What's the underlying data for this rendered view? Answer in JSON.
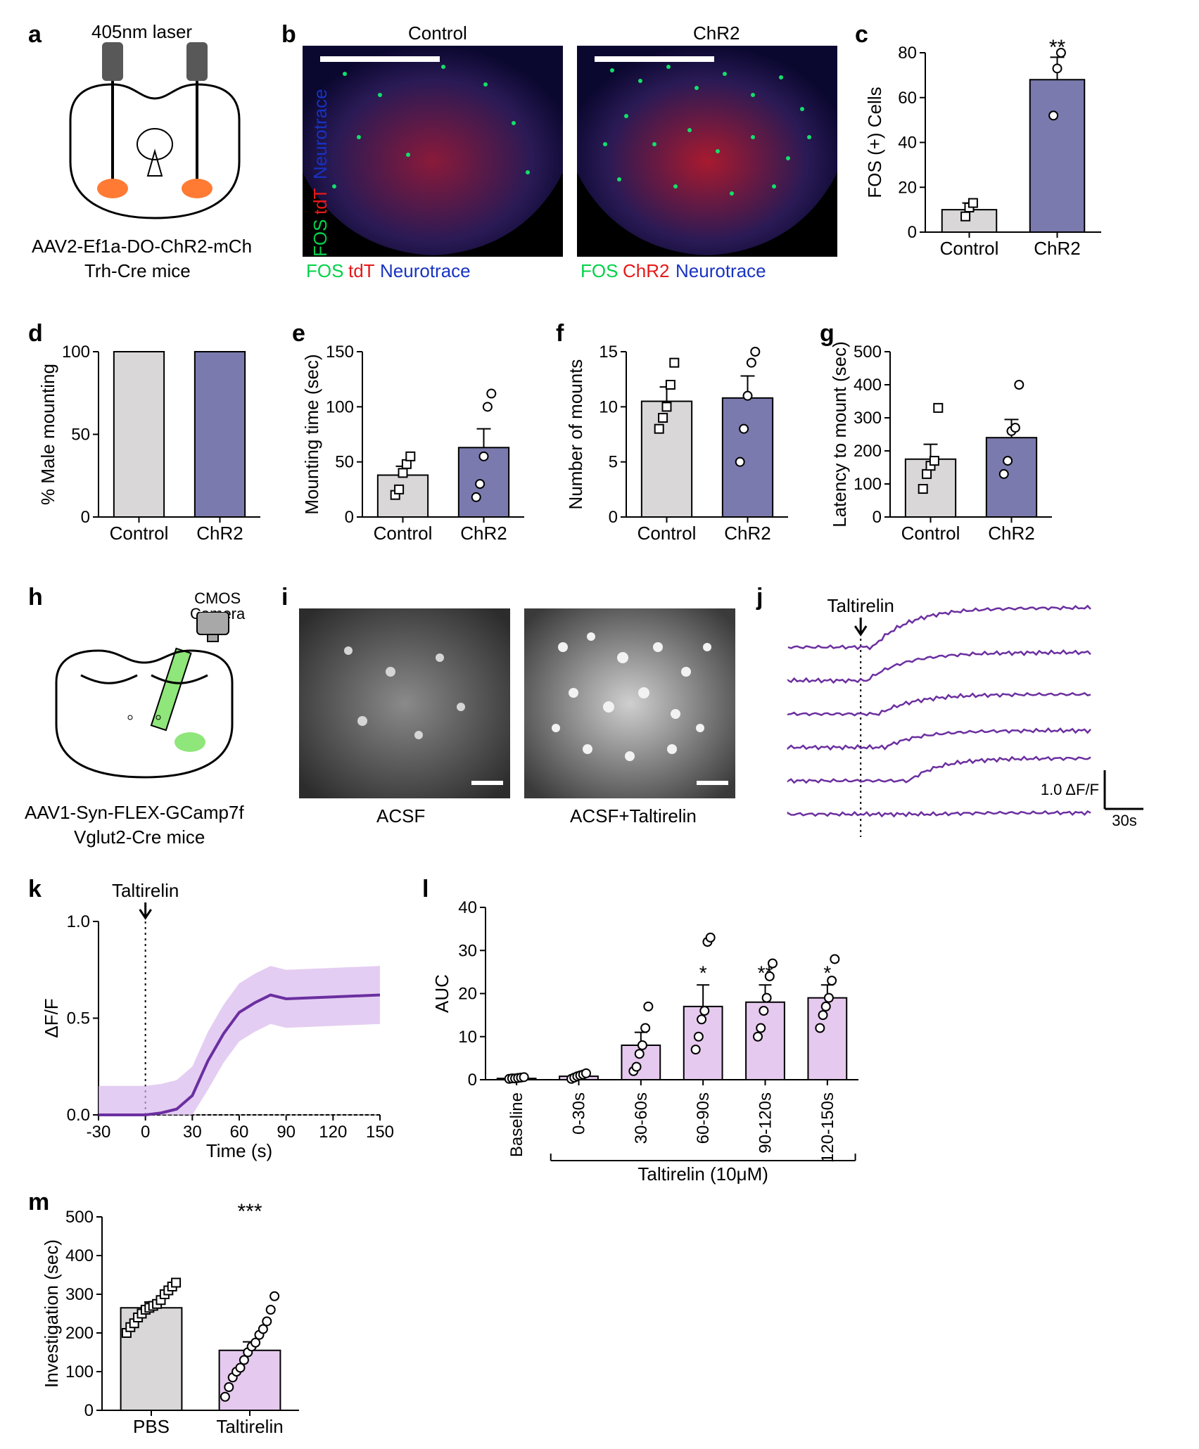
{
  "colors": {
    "control_fill": "#d9d7d7",
    "chr2_fill": "#7b7aae",
    "taltirelin_fill": "#e6c9ef",
    "line_purple": "#6b2fa0",
    "shade_purple": "#d9b8ec",
    "green": "#05d14a",
    "red": "#e61919",
    "blue": "#1733c2",
    "grey": "#808080"
  },
  "typography": {
    "panel_label_fontsize": 34,
    "axis_fontsize": 26,
    "tick_fontsize": 24
  },
  "panels": {
    "a": {
      "label": "a",
      "top_label": "405nm laser",
      "virus": "AAV2-Ef1a-DO-ChR2-mCh",
      "mouse": "Trh-Cre mice"
    },
    "b": {
      "label": "b",
      "left_title": "Control",
      "right_title": "ChR2",
      "left_legend": [
        "FOS",
        "tdT",
        "Neurotrace"
      ],
      "right_legend": [
        "FOS",
        "ChR2",
        "Neurotrace"
      ]
    },
    "c": {
      "label": "c",
      "ylabel": "FOS (+) Cells",
      "ylim": [
        0,
        80
      ],
      "ytick_step": 20,
      "categories": [
        "Control",
        "ChR2"
      ],
      "values": [
        10,
        68
      ],
      "errors": [
        3,
        10
      ],
      "bar_colors_key": [
        "control_fill",
        "chr2_fill"
      ],
      "points": {
        "Control": [
          7,
          11,
          13
        ],
        "ChR2": [
          52,
          73,
          80
        ]
      },
      "sig": "**",
      "point_shapes": [
        "square",
        "circle"
      ]
    },
    "d": {
      "label": "d",
      "ylabel": "% Male mounting",
      "ylim": [
        0,
        100
      ],
      "ytick_step": 50,
      "categories": [
        "Control",
        "ChR2"
      ],
      "values": [
        100,
        100
      ],
      "bar_colors_key": [
        "control_fill",
        "chr2_fill"
      ]
    },
    "e": {
      "label": "e",
      "ylabel": "Mounting time (sec)",
      "ylim": [
        0,
        150
      ],
      "ytick_step": 50,
      "categories": [
        "Control",
        "ChR2"
      ],
      "values": [
        38,
        63
      ],
      "errors": [
        8,
        17
      ],
      "bar_colors_key": [
        "control_fill",
        "chr2_fill"
      ],
      "points": {
        "Control": [
          20,
          25,
          40,
          48,
          55
        ],
        "ChR2": [
          18,
          30,
          55,
          100,
          112
        ]
      },
      "point_shapes": [
        "square",
        "circle"
      ]
    },
    "f": {
      "label": "f",
      "ylabel": "Number of mounts",
      "ylim": [
        0,
        15
      ],
      "ytick_step": 5,
      "categories": [
        "Control",
        "ChR2"
      ],
      "values": [
        10.5,
        10.8
      ],
      "errors": [
        1.3,
        2.0
      ],
      "bar_colors_key": [
        "control_fill",
        "chr2_fill"
      ],
      "points": {
        "Control": [
          8,
          9,
          10,
          12,
          14
        ],
        "ChR2": [
          5,
          8,
          11,
          14,
          15
        ]
      },
      "point_shapes": [
        "square",
        "circle"
      ]
    },
    "g": {
      "label": "g",
      "ylabel": "Latency to mount (sec)",
      "ylim": [
        0,
        500
      ],
      "ytick_step": 100,
      "categories": [
        "Control",
        "ChR2"
      ],
      "values": [
        175,
        240
      ],
      "errors": [
        45,
        55
      ],
      "bar_colors_key": [
        "control_fill",
        "chr2_fill"
      ],
      "points": {
        "Control": [
          85,
          130,
          155,
          170,
          330
        ],
        "ChR2": [
          130,
          170,
          260,
          270,
          400
        ]
      },
      "point_shapes": [
        "square",
        "circle"
      ]
    },
    "h": {
      "label": "h",
      "top_label": "CMOS\nCamera",
      "virus": "AAV1-Syn-FLEX-GCamp7f",
      "mouse": "Vglut2-Cre mice"
    },
    "i": {
      "label": "i",
      "left_cap": "ACSF",
      "right_cap": "ACSF+Taltirelin"
    },
    "j": {
      "label": "j",
      "arrow_label": "Taltirelin",
      "scale_y_label": "1.0 ΔF/F",
      "scale_x_label": "30s",
      "n_traces": 6,
      "trace_color_key": "line_purple"
    },
    "k": {
      "label": "k",
      "arrow_label": "Taltirelin",
      "ylabel": "ΔF/F",
      "xlabel": "Time (s)",
      "xlim": [
        -30,
        150
      ],
      "xtick_step": 30,
      "ylim": [
        0,
        1.0
      ],
      "ytick_step": 0.5,
      "mean_series": {
        "x": [
          -30,
          0,
          10,
          20,
          30,
          40,
          50,
          60,
          70,
          80,
          90,
          120,
          150
        ],
        "y": [
          0,
          0,
          0.01,
          0.03,
          0.1,
          0.28,
          0.42,
          0.53,
          0.58,
          0.62,
          0.6,
          0.61,
          0.62
        ]
      },
      "sem": 0.15
    },
    "l": {
      "label": "l",
      "ylabel": "AUC",
      "ylim": [
        0,
        40
      ],
      "ytick_step": 10,
      "categories": [
        "Baseline",
        "0-30s",
        "30-60s",
        "60-90s",
        "90-120s",
        "120-150s"
      ],
      "x_group_label": "Taltirelin (10μM)",
      "values": [
        0.3,
        0.8,
        8,
        17,
        18,
        19
      ],
      "errors": [
        0.2,
        0.5,
        3,
        5,
        4,
        3
      ],
      "sig": [
        "",
        "",
        "",
        "*",
        "**",
        "*"
      ],
      "points": {
        "Baseline": [
          0.2,
          0.3,
          0.3,
          0.4,
          0.5,
          0.6
        ],
        "0-30s": [
          0.2,
          0.5,
          0.8,
          1.0,
          1.2,
          1.5
        ],
        "30-60s": [
          2,
          3,
          6,
          8,
          12,
          17
        ],
        "60-90s": [
          7,
          10,
          14,
          16,
          32,
          33
        ],
        "90-120s": [
          10,
          12,
          16,
          19,
          24,
          27
        ],
        "120-150s": [
          12,
          15,
          17,
          19,
          23,
          28
        ]
      },
      "bar_color_key": "taltirelin_fill"
    },
    "m": {
      "label": "m",
      "ylabel": "Investigation (sec)",
      "ylim": [
        0,
        500
      ],
      "ytick_step": 100,
      "categories": [
        "PBS",
        "Taltirelin"
      ],
      "values": [
        265,
        155
      ],
      "errors": [
        15,
        22
      ],
      "bar_colors_key": [
        "control_fill",
        "taltirelin_fill"
      ],
      "points": {
        "PBS": [
          200,
          215,
          225,
          240,
          250,
          260,
          265,
          270,
          275,
          285,
          300,
          310,
          320,
          330
        ],
        "Taltirelin": [
          35,
          60,
          85,
          100,
          110,
          130,
          150,
          165,
          175,
          195,
          210,
          230,
          260,
          295
        ]
      },
      "sig": "***",
      "point_shapes": [
        "square",
        "circle"
      ]
    }
  }
}
